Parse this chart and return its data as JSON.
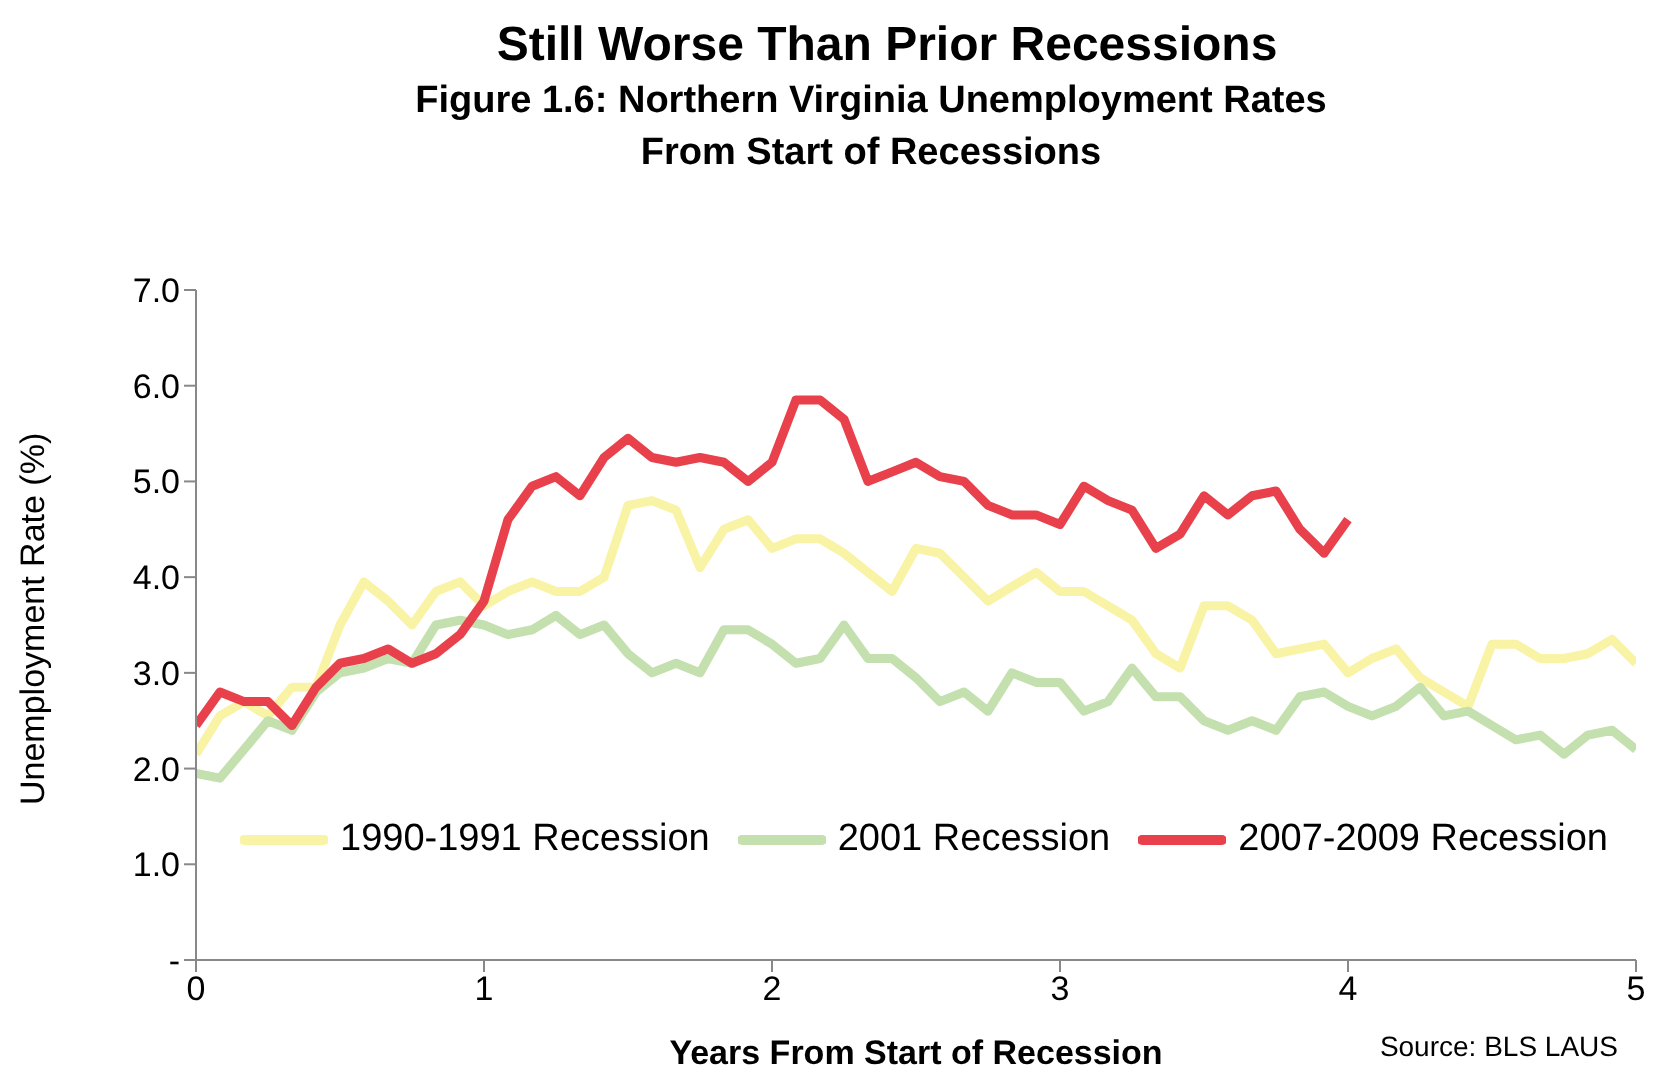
{
  "chart_data": {
    "type": "line",
    "title": "Still Worse Than Prior Recessions",
    "subtitle": "Figure 1.6: Northern Virginia Unemployment Rates From Start of Recessions",
    "xlabel": "Years From Start of Recession",
    "ylabel": "Unemployment Rate (%)",
    "annotations": [
      "Source: BLS LAUS"
    ],
    "x": [
      0,
      0.083,
      0.167,
      0.25,
      0.333,
      0.417,
      0.5,
      0.583,
      0.667,
      0.75,
      0.833,
      0.917,
      1,
      1.083,
      1.167,
      1.25,
      1.333,
      1.417,
      1.5,
      1.583,
      1.667,
      1.75,
      1.833,
      1.917,
      2,
      2.083,
      2.167,
      2.25,
      2.333,
      2.417,
      2.5,
      2.583,
      2.667,
      2.75,
      2.833,
      2.917,
      3,
      3.083,
      3.167,
      3.25,
      3.333,
      3.417,
      3.5,
      3.583,
      3.667,
      3.75,
      3.833,
      3.917,
      4,
      4.083,
      4.167,
      4.25,
      4.333,
      4.417,
      4.5,
      4.583,
      4.667,
      4.75,
      4.833,
      4.917,
      5
    ],
    "series": [
      {
        "name": "1990-1991 Recession",
        "color": "#f9f3a6",
        "values": [
          2.15,
          2.55,
          2.7,
          2.55,
          2.85,
          2.85,
          3.5,
          3.95,
          3.75,
          3.5,
          3.85,
          3.95,
          3.7,
          3.85,
          3.95,
          3.85,
          3.85,
          4.0,
          4.75,
          4.8,
          4.7,
          4.1,
          4.5,
          4.6,
          4.3,
          4.4,
          4.4,
          4.25,
          4.05,
          3.85,
          4.3,
          4.25,
          4.0,
          3.75,
          3.9,
          4.05,
          3.85,
          3.85,
          3.7,
          3.55,
          3.2,
          3.05,
          3.7,
          3.7,
          3.55,
          3.2,
          3.25,
          3.3,
          3.0,
          3.15,
          3.25,
          2.95,
          2.8,
          2.65,
          3.3,
          3.3,
          3.15,
          3.15,
          3.2,
          3.35,
          3.1
        ]
      },
      {
        "name": "2001 Recession",
        "color": "#c3e0ae",
        "values": [
          1.95,
          1.9,
          2.2,
          2.5,
          2.4,
          2.8,
          3.0,
          3.05,
          3.15,
          3.1,
          3.5,
          3.55,
          3.5,
          3.4,
          3.45,
          3.6,
          3.4,
          3.5,
          3.2,
          3.0,
          3.1,
          3.0,
          3.45,
          3.45,
          3.3,
          3.1,
          3.15,
          3.5,
          3.15,
          3.15,
          2.95,
          2.7,
          2.8,
          2.6,
          3.0,
          2.9,
          2.9,
          2.6,
          2.7,
          3.05,
          2.75,
          2.75,
          2.5,
          2.4,
          2.5,
          2.4,
          2.75,
          2.8,
          2.65,
          2.55,
          2.65,
          2.85,
          2.55,
          2.6,
          2.45,
          2.3,
          2.35,
          2.15,
          2.35,
          2.4,
          2.2
        ]
      },
      {
        "name": "2007-2009 Recession",
        "color": "#e8414b",
        "x": [
          0,
          0.083,
          0.167,
          0.25,
          0.333,
          0.417,
          0.5,
          0.583,
          0.667,
          0.75,
          0.833,
          0.917,
          1,
          1.083,
          1.167,
          1.25,
          1.333,
          1.417,
          1.5,
          1.583,
          1.667,
          1.75,
          1.833,
          1.917,
          2,
          2.083,
          2.167,
          2.25,
          2.333,
          2.417,
          2.5,
          2.583,
          2.667,
          2.75,
          2.833,
          2.917,
          3,
          3.083,
          3.167,
          3.25,
          3.333,
          3.417,
          3.5,
          3.583,
          3.667,
          3.75,
          3.833,
          3.917,
          4
        ],
        "values": [
          2.45,
          2.8,
          2.7,
          2.7,
          2.45,
          2.85,
          3.1,
          3.15,
          3.25,
          3.1,
          3.2,
          3.4,
          3.75,
          4.6,
          4.95,
          5.05,
          4.85,
          5.25,
          5.45,
          5.25,
          5.2,
          5.25,
          5.2,
          5.0,
          5.2,
          5.85,
          5.85,
          5.65,
          5.0,
          5.1,
          5.2,
          5.05,
          5.0,
          4.75,
          4.65,
          4.65,
          4.55,
          4.95,
          4.8,
          4.7,
          4.3,
          4.45,
          4.85,
          4.65,
          4.85,
          4.9,
          4.5,
          4.25,
          4.6
        ]
      }
    ],
    "xlim": [
      0,
      5
    ],
    "xticks": [
      0,
      1,
      2,
      3,
      4,
      5
    ],
    "ylim": [
      0,
      7
    ],
    "yticks": [
      {
        "value": 0,
        "label": "-"
      },
      {
        "value": 1,
        "label": "1.0"
      },
      {
        "value": 2,
        "label": "2.0"
      },
      {
        "value": 3,
        "label": "3.0"
      },
      {
        "value": 4,
        "label": "4.0"
      },
      {
        "value": 5,
        "label": "5.0"
      },
      {
        "value": 6,
        "label": "6.0"
      },
      {
        "value": 7,
        "label": "7.0"
      }
    ],
    "grid": false,
    "legend": "bottom",
    "marker": "none",
    "line_style": "solid"
  }
}
